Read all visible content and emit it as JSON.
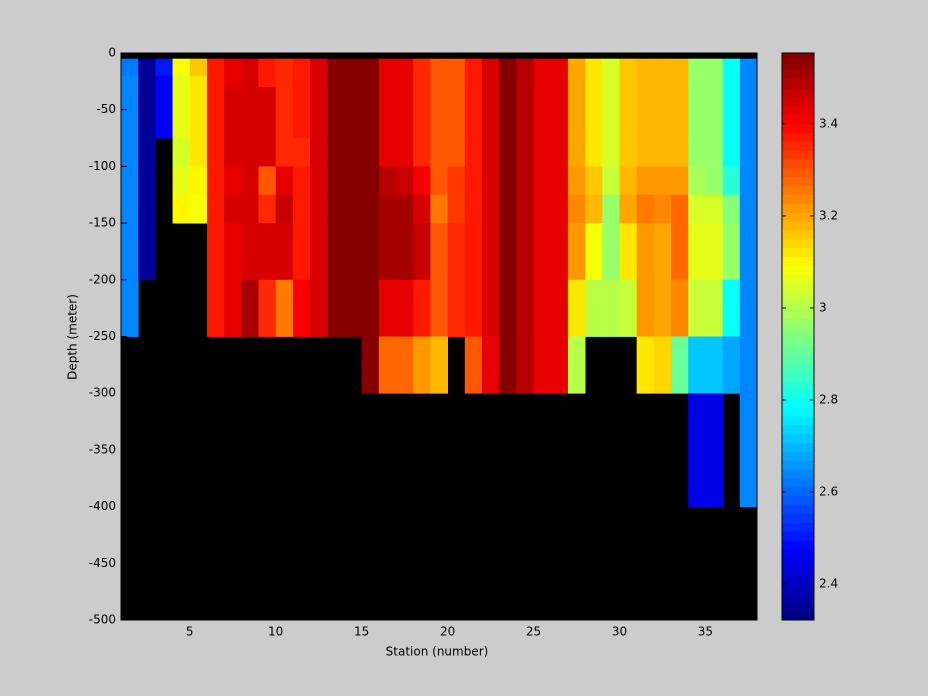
{
  "chart_data": {
    "type": "heatmap",
    "xlabel": "Station (number)",
    "ylabel": "Depth (meter)",
    "colormap": "jet",
    "nan_color": "#000000",
    "x": [
      1,
      2,
      3,
      4,
      5,
      6,
      7,
      8,
      9,
      10,
      11,
      12,
      13,
      14,
      15,
      16,
      17,
      18,
      19,
      20,
      21,
      22,
      23,
      24,
      25,
      26,
      27,
      28,
      29,
      30,
      31,
      32,
      33,
      34,
      35,
      36,
      37,
      38
    ],
    "y": [
      0,
      -5,
      -20,
      -30,
      -75,
      -100,
      -125,
      -150,
      -200,
      -250,
      -300,
      -400,
      -500
    ],
    "values": [
      [
        null,
        2.62,
        2.64,
        2.64,
        2.64,
        2.64,
        2.64,
        2.64,
        2.64,
        null,
        null,
        null
      ],
      [
        null,
        2.35,
        2.35,
        2.35,
        2.35,
        2.35,
        2.36,
        2.36,
        null,
        null,
        null,
        null
      ],
      [
        null,
        2.5,
        2.47,
        2.47,
        null,
        null,
        null,
        null,
        null,
        null,
        null,
        null
      ],
      [
        null,
        3.08,
        3.06,
        3.06,
        3.04,
        3.06,
        3.1,
        null,
        null,
        null,
        null,
        null
      ],
      [
        null,
        3.15,
        3.12,
        3.12,
        3.12,
        3.1,
        3.08,
        null,
        null,
        null,
        null,
        null
      ],
      [
        null,
        3.38,
        3.38,
        3.38,
        3.38,
        3.38,
        3.38,
        3.38,
        3.38,
        null,
        null,
        null
      ],
      [
        null,
        3.42,
        3.42,
        3.45,
        3.45,
        3.42,
        3.45,
        3.42,
        3.42,
        null,
        null,
        null
      ],
      [
        null,
        3.45,
        3.45,
        3.45,
        3.45,
        3.44,
        3.44,
        3.44,
        3.5,
        null,
        null,
        null
      ],
      [
        null,
        3.38,
        3.38,
        3.44,
        3.44,
        3.3,
        3.36,
        3.44,
        3.36,
        null,
        null,
        null
      ],
      [
        null,
        3.36,
        3.36,
        3.36,
        3.36,
        3.42,
        3.47,
        3.44,
        3.25,
        null,
        null,
        null
      ],
      [
        null,
        3.38,
        3.38,
        3.38,
        3.36,
        3.38,
        3.38,
        3.38,
        3.4,
        null,
        null,
        null
      ],
      [
        null,
        3.44,
        3.44,
        3.44,
        3.44,
        3.44,
        3.44,
        3.44,
        3.44,
        null,
        null,
        null
      ],
      [
        null,
        3.55,
        3.55,
        3.55,
        3.55,
        3.55,
        3.55,
        3.55,
        3.55,
        null,
        null,
        null
      ],
      [
        null,
        3.55,
        3.55,
        3.55,
        3.55,
        3.55,
        3.55,
        3.55,
        3.55,
        null,
        null,
        null
      ],
      [
        null,
        3.55,
        3.55,
        3.55,
        3.55,
        3.55,
        3.55,
        3.55,
        3.55,
        3.55,
        null,
        null
      ],
      [
        null,
        3.43,
        3.43,
        3.43,
        3.43,
        3.48,
        3.5,
        3.5,
        3.43,
        3.28,
        null,
        null
      ],
      [
        null,
        3.43,
        3.43,
        3.43,
        3.43,
        3.47,
        3.5,
        3.5,
        3.43,
        3.28,
        null,
        null
      ],
      [
        null,
        3.36,
        3.36,
        3.36,
        3.36,
        3.4,
        3.44,
        3.47,
        3.38,
        3.22,
        null,
        null
      ],
      [
        null,
        3.3,
        3.3,
        3.3,
        3.3,
        3.3,
        3.26,
        3.3,
        3.3,
        3.18,
        null,
        null
      ],
      [
        null,
        3.3,
        3.3,
        3.3,
        3.3,
        3.33,
        3.33,
        3.36,
        3.36,
        null,
        null,
        null
      ],
      [
        null,
        3.38,
        3.38,
        3.38,
        3.38,
        3.38,
        3.38,
        3.38,
        3.38,
        3.3,
        null,
        null
      ],
      [
        null,
        3.44,
        3.44,
        3.44,
        3.44,
        3.44,
        3.44,
        3.44,
        3.44,
        3.42,
        null,
        null
      ],
      [
        null,
        3.54,
        3.54,
        3.54,
        3.54,
        3.54,
        3.54,
        3.54,
        3.54,
        3.54,
        null,
        null
      ],
      [
        null,
        3.48,
        3.48,
        3.48,
        3.48,
        3.48,
        3.48,
        3.48,
        3.48,
        3.48,
        null,
        null
      ],
      [
        null,
        3.42,
        3.42,
        3.42,
        3.42,
        3.42,
        3.42,
        3.42,
        3.42,
        3.42,
        null,
        null
      ],
      [
        null,
        3.42,
        3.42,
        3.42,
        3.42,
        3.42,
        3.42,
        3.42,
        3.42,
        3.42,
        null,
        null
      ],
      [
        null,
        3.2,
        3.2,
        3.2,
        3.2,
        3.22,
        3.24,
        3.22,
        3.12,
        3.0,
        null,
        null
      ],
      [
        null,
        3.12,
        3.12,
        3.12,
        3.12,
        3.16,
        3.18,
        3.08,
        3.0,
        null,
        null,
        null
      ],
      [
        null,
        3.05,
        3.05,
        3.05,
        3.05,
        3.02,
        2.97,
        2.97,
        3.0,
        null,
        null,
        null
      ],
      [
        null,
        3.15,
        3.15,
        3.15,
        3.15,
        3.18,
        3.2,
        3.12,
        3.02,
        null,
        null,
        null
      ],
      [
        null,
        3.18,
        3.18,
        3.18,
        3.18,
        3.22,
        3.26,
        3.22,
        3.22,
        3.12,
        null,
        null
      ],
      [
        null,
        3.18,
        3.18,
        3.18,
        3.18,
        3.22,
        3.24,
        3.2,
        3.2,
        3.14,
        null,
        null
      ],
      [
        null,
        3.18,
        3.18,
        3.18,
        3.18,
        3.22,
        3.28,
        3.27,
        3.24,
        2.9,
        null,
        null
      ],
      [
        null,
        2.97,
        2.97,
        2.97,
        2.97,
        2.98,
        3.05,
        3.06,
        3.03,
        2.72,
        2.45,
        null
      ],
      [
        null,
        2.97,
        2.97,
        2.97,
        2.97,
        2.97,
        3.05,
        3.06,
        3.03,
        2.72,
        2.45,
        null
      ],
      [
        null,
        2.8,
        2.8,
        2.8,
        2.8,
        2.84,
        2.95,
        2.97,
        2.8,
        2.68,
        null,
        null
      ],
      [
        null,
        2.64,
        2.64,
        2.64,
        2.64,
        2.64,
        2.64,
        2.64,
        2.64,
        2.64,
        2.64,
        null
      ]
    ],
    "xlim": [
      1,
      38
    ],
    "ylim": [
      -500,
      0
    ],
    "xticks": [
      5,
      10,
      15,
      20,
      25,
      30,
      35
    ],
    "yticks": [
      0,
      -50,
      -100,
      -150,
      -200,
      -250,
      -300,
      -350,
      -400,
      -450,
      -500
    ],
    "clim": [
      2.322,
      3.554
    ],
    "cticks": [
      2.4,
      2.6,
      2.8,
      3,
      3.2,
      3.4
    ]
  }
}
